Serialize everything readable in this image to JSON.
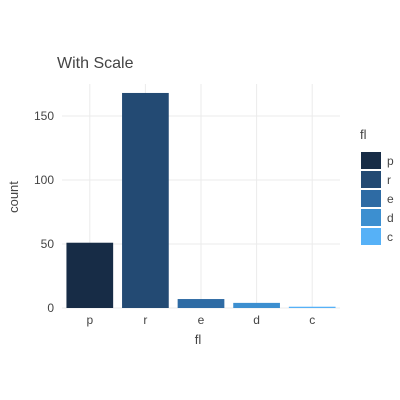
{
  "chart_data": {
    "type": "bar",
    "title": "With Scale",
    "xlabel": "fl",
    "ylabel": "count",
    "categories": [
      "p",
      "r",
      "e",
      "d",
      "c"
    ],
    "values": [
      51,
      168,
      7,
      4,
      1
    ],
    "ylim": [
      0,
      175
    ],
    "yticks": [
      0,
      50,
      100,
      150
    ],
    "grid": true,
    "legend": {
      "title": "fl",
      "position": "right",
      "labels": [
        "p",
        "r",
        "e",
        "d",
        "c"
      ]
    },
    "colors": [
      "#172c46",
      "#234a73",
      "#2e6ba4",
      "#3c8fd0",
      "#56b1f7"
    ]
  }
}
